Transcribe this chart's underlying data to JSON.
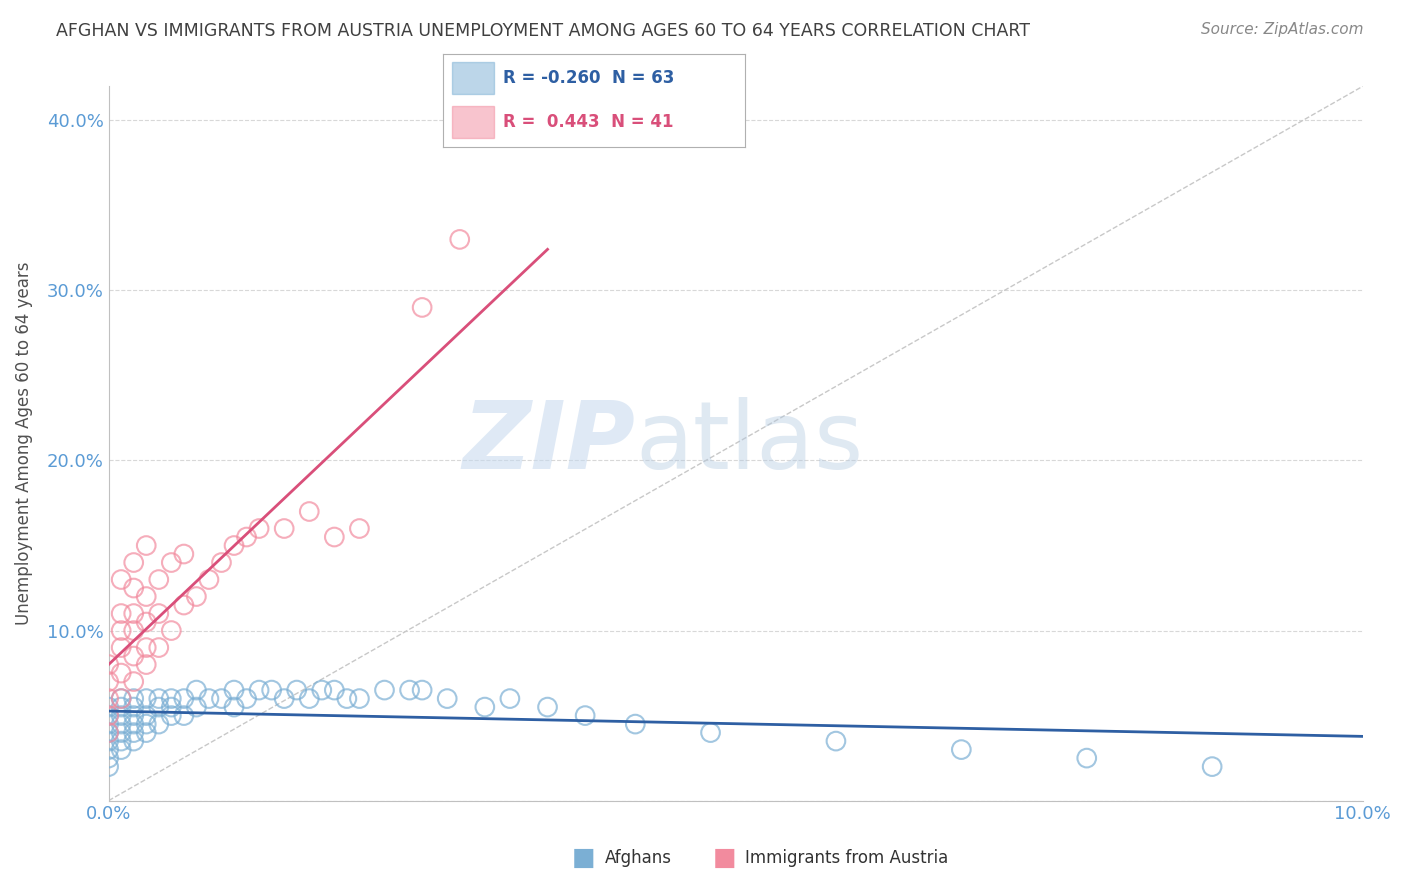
{
  "title": "AFGHAN VS IMMIGRANTS FROM AUSTRIA UNEMPLOYMENT AMONG AGES 60 TO 64 YEARS CORRELATION CHART",
  "source": "Source: ZipAtlas.com",
  "ylabel": "Unemployment Among Ages 60 to 64 years",
  "xlim": [
    0.0,
    0.1
  ],
  "ylim": [
    0.0,
    0.42
  ],
  "xticks": [
    0.0,
    0.02,
    0.04,
    0.06,
    0.08,
    0.1
  ],
  "xtick_labels": [
    "0.0%",
    "",
    "",
    "",
    "",
    "10.0%"
  ],
  "yticks": [
    0.0,
    0.1,
    0.2,
    0.3,
    0.4
  ],
  "ytick_labels": [
    "",
    "10.0%",
    "20.0%",
    "30.0%",
    "40.0%"
  ],
  "legend_afghan_R": "-0.260",
  "legend_afghan_N": "63",
  "legend_austria_R": "0.443",
  "legend_austria_N": "41",
  "afghan_color": "#7bafd4",
  "austria_color": "#f28b9e",
  "afghan_line_color": "#2e5fa3",
  "austria_line_color": "#d94f7a",
  "diagonal_color": "#c8c8c8",
  "watermark_zip": "ZIP",
  "watermark_atlas": "atlas",
  "background_color": "#ffffff",
  "grid_color": "#d8d8d8",
  "title_color": "#404040",
  "axis_label_color": "#505050",
  "tick_label_color": "#5b9bd5",
  "afghan_x": [
    0.0,
    0.0,
    0.0,
    0.0,
    0.0,
    0.0,
    0.0,
    0.0,
    0.001,
    0.001,
    0.001,
    0.001,
    0.001,
    0.001,
    0.001,
    0.002,
    0.002,
    0.002,
    0.002,
    0.002,
    0.002,
    0.003,
    0.003,
    0.003,
    0.003,
    0.004,
    0.004,
    0.004,
    0.005,
    0.005,
    0.005,
    0.006,
    0.006,
    0.007,
    0.007,
    0.008,
    0.009,
    0.01,
    0.01,
    0.011,
    0.012,
    0.013,
    0.014,
    0.015,
    0.016,
    0.017,
    0.018,
    0.019,
    0.02,
    0.022,
    0.024,
    0.025,
    0.027,
    0.03,
    0.032,
    0.035,
    0.038,
    0.042,
    0.048,
    0.058,
    0.068,
    0.078,
    0.088
  ],
  "afghan_y": [
    0.02,
    0.025,
    0.03,
    0.035,
    0.04,
    0.045,
    0.05,
    0.055,
    0.03,
    0.035,
    0.04,
    0.045,
    0.05,
    0.055,
    0.06,
    0.035,
    0.04,
    0.045,
    0.05,
    0.055,
    0.06,
    0.04,
    0.045,
    0.05,
    0.06,
    0.045,
    0.055,
    0.06,
    0.05,
    0.055,
    0.06,
    0.05,
    0.06,
    0.055,
    0.065,
    0.06,
    0.06,
    0.055,
    0.065,
    0.06,
    0.065,
    0.065,
    0.06,
    0.065,
    0.06,
    0.065,
    0.065,
    0.06,
    0.06,
    0.065,
    0.065,
    0.065,
    0.06,
    0.055,
    0.06,
    0.055,
    0.05,
    0.045,
    0.04,
    0.035,
    0.03,
    0.025,
    0.02
  ],
  "austria_x": [
    0.0,
    0.0,
    0.0,
    0.0,
    0.0,
    0.001,
    0.001,
    0.001,
    0.001,
    0.001,
    0.001,
    0.002,
    0.002,
    0.002,
    0.002,
    0.002,
    0.002,
    0.003,
    0.003,
    0.003,
    0.003,
    0.003,
    0.004,
    0.004,
    0.004,
    0.005,
    0.005,
    0.006,
    0.006,
    0.007,
    0.008,
    0.009,
    0.01,
    0.011,
    0.012,
    0.014,
    0.016,
    0.018,
    0.02,
    0.025,
    0.028
  ],
  "austria_y": [
    0.04,
    0.05,
    0.06,
    0.07,
    0.08,
    0.06,
    0.075,
    0.09,
    0.1,
    0.11,
    0.13,
    0.07,
    0.085,
    0.1,
    0.11,
    0.125,
    0.14,
    0.08,
    0.09,
    0.105,
    0.12,
    0.15,
    0.09,
    0.11,
    0.13,
    0.1,
    0.14,
    0.115,
    0.145,
    0.12,
    0.13,
    0.14,
    0.15,
    0.155,
    0.16,
    0.16,
    0.17,
    0.155,
    0.16,
    0.29,
    0.33
  ]
}
